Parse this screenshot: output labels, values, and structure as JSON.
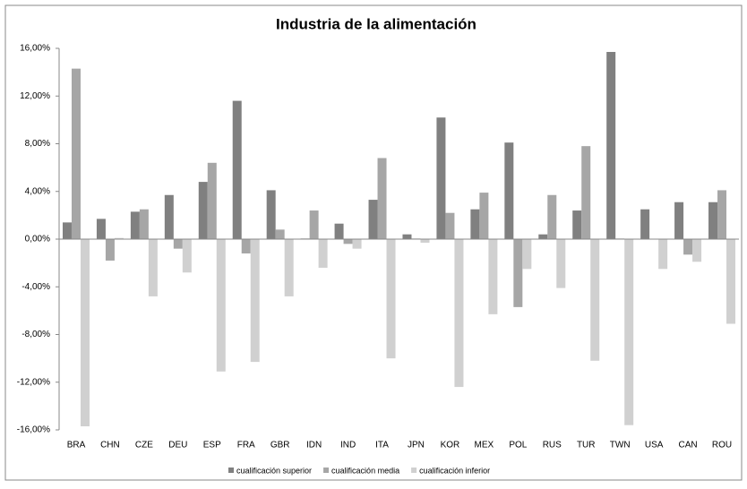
{
  "chart_data": {
    "type": "bar",
    "title": "Industria de la alimentación",
    "categories": [
      "BRA",
      "CHN",
      "CZE",
      "DEU",
      "ESP",
      "FRA",
      "GBR",
      "IDN",
      "IND",
      "ITA",
      "JPN",
      "KOR",
      "MEX",
      "POL",
      "RUS",
      "TUR",
      "TWN",
      "USA",
      "CAN",
      "ROU"
    ],
    "series": [
      {
        "name": "cualificación superior",
        "color": "#808080",
        "values": [
          1.4,
          1.7,
          2.3,
          3.7,
          4.8,
          11.6,
          4.1,
          0.05,
          1.3,
          3.3,
          0.4,
          10.2,
          2.5,
          8.1,
          0.4,
          2.4,
          15.7,
          2.5,
          3.1,
          3.1
        ]
      },
      {
        "name": "cualificación media",
        "color": "#a6a6a6",
        "values": [
          14.3,
          -1.8,
          2.5,
          -0.8,
          6.4,
          -1.2,
          0.8,
          2.4,
          -0.4,
          6.8,
          0.05,
          2.2,
          3.9,
          -5.7,
          3.7,
          7.8,
          0.05,
          0,
          -1.3,
          4.1
        ]
      },
      {
        "name": "cualificación inferior",
        "color": "#d0d0d0",
        "values": [
          -15.7,
          0.1,
          -4.8,
          -2.8,
          -11.1,
          -10.3,
          -4.8,
          -2.4,
          -0.8,
          -10.0,
          -0.3,
          -12.4,
          -6.3,
          -2.5,
          -4.1,
          -10.2,
          -15.6,
          -2.5,
          -1.9,
          -7.1
        ]
      }
    ],
    "ylim": [
      -16,
      16
    ],
    "yticks": [
      {
        "value": -16,
        "label": "-16,00%"
      },
      {
        "value": -12,
        "label": "-12,00%"
      },
      {
        "value": -8,
        "label": "-8,00%"
      },
      {
        "value": -4,
        "label": "-4,00%"
      },
      {
        "value": 0,
        "label": "0,00%"
      },
      {
        "value": 4,
        "label": "4,00%"
      },
      {
        "value": 8,
        "label": "8,00%"
      },
      {
        "value": 12,
        "label": "12,00%"
      },
      {
        "value": 16,
        "label": "16,00%"
      }
    ],
    "legend": "bottom"
  }
}
